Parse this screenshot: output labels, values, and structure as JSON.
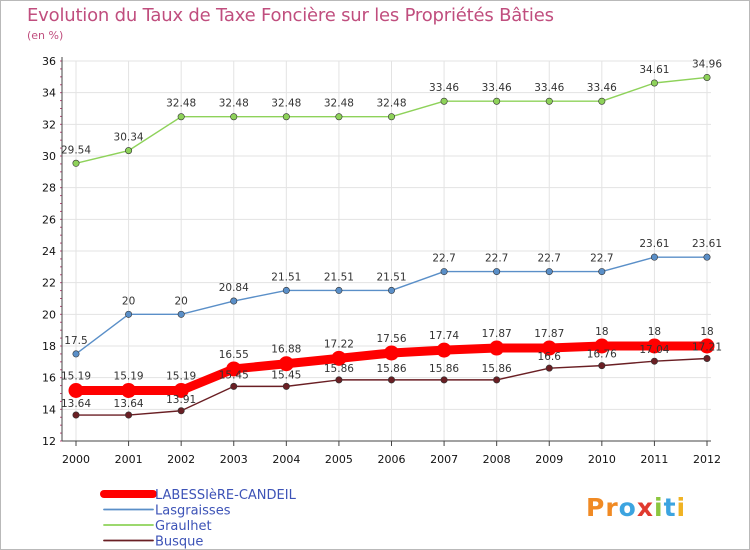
{
  "header": {
    "title": "Evolution du Taux de Taxe Foncière sur les Propriétés Bâties",
    "subtitle": "(en %)"
  },
  "chart_data": {
    "type": "line",
    "title": "Evolution du Taux de Taxe Foncière sur les Propriétés Bâties",
    "ylabel": "(en %)",
    "xlabel": "",
    "x": [
      "2000",
      "2001",
      "2002",
      "2003",
      "2004",
      "2005",
      "2006",
      "2007",
      "2008",
      "2009",
      "2010",
      "2011",
      "2012"
    ],
    "ylim": [
      12,
      36
    ],
    "yticks": [
      12,
      14,
      16,
      18,
      20,
      22,
      24,
      26,
      28,
      30,
      32,
      34,
      36
    ],
    "grid": true,
    "legend_position": "bottom-left",
    "series": [
      {
        "name": "LABESSIèRE-CANDEIL",
        "color": "#ff0000",
        "values": [
          15.19,
          15.19,
          15.19,
          16.55,
          16.88,
          17.22,
          17.56,
          17.74,
          17.87,
          17.87,
          18,
          18,
          18
        ],
        "labels": [
          "15.19",
          "15.19",
          "15.19",
          "16.55",
          "16.88",
          "17.22",
          "17.56",
          "17.74",
          "17.87",
          "17.87",
          "18",
          "18",
          "18"
        ]
      },
      {
        "name": "Lasgraisses",
        "color": "#5a8fc8",
        "values": [
          17.5,
          20,
          20,
          20.84,
          21.51,
          21.51,
          21.51,
          22.7,
          22.7,
          22.7,
          22.7,
          23.61,
          23.61
        ],
        "labels": [
          "17.5",
          "20",
          "20",
          "20.84",
          "21.51",
          "21.51",
          "21.51",
          "22.7",
          "22.7",
          "22.7",
          "22.7",
          "23.61",
          "23.61"
        ]
      },
      {
        "name": "Graulhet",
        "color": "#8ed25a",
        "values": [
          29.54,
          30.34,
          32.48,
          32.48,
          32.48,
          32.48,
          32.48,
          33.46,
          33.46,
          33.46,
          33.46,
          34.61,
          34.96
        ],
        "labels": [
          "29.54",
          "30.34",
          "32.48",
          "32.48",
          "32.48",
          "32.48",
          "32.48",
          "33.46",
          "33.46",
          "33.46",
          "33.46",
          "34.61",
          "34.96"
        ]
      },
      {
        "name": "Busque",
        "color": "#6a1f24",
        "values": [
          13.64,
          13.64,
          13.91,
          15.45,
          15.45,
          15.86,
          15.86,
          15.86,
          15.86,
          16.6,
          16.76,
          17.04,
          17.21
        ],
        "labels": [
          "13.64",
          "13.64",
          "13.91",
          "15.45",
          "15.45",
          "15.86",
          "15.86",
          "15.86",
          "15.86",
          "16.6",
          "16.76",
          "17.04",
          "17.21"
        ]
      }
    ]
  },
  "logo": {
    "text": "Proxiti",
    "letters": [
      "P",
      "r",
      "o",
      "x",
      "i",
      "t",
      "i"
    ],
    "colors": [
      "#f08a24",
      "#f08a24",
      "#3ca4e0",
      "#e03a2f",
      "#8cc63f",
      "#3ca4e0",
      "#f0b323"
    ]
  }
}
